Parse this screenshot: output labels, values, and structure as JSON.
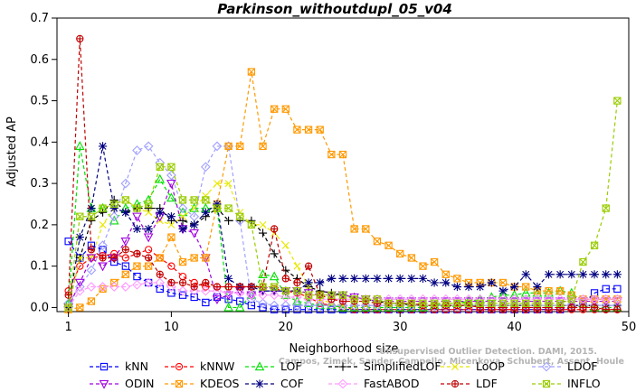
{
  "chart_data": {
    "type": "line",
    "title": "Parkinson_withoutdupl_05_v04",
    "xlabel": "Neighborhood size",
    "ylabel": "Adjusted AP",
    "xlim": [
      0,
      50
    ],
    "ylim": [
      -0.01,
      0.7
    ],
    "x_ticks": [
      "0",
      "10",
      "20",
      "30",
      "40",
      "50"
    ],
    "y_ticks": [
      "0.0",
      "0.1",
      "0.2",
      "0.3",
      "0.4",
      "0.5",
      "0.6",
      "0.7"
    ],
    "grid": false,
    "legend_position": "bottom",
    "x": [
      1,
      2,
      3,
      4,
      5,
      6,
      7,
      8,
      9,
      10,
      11,
      12,
      13,
      14,
      15,
      16,
      17,
      18,
      19,
      20,
      21,
      22,
      23,
      24,
      25,
      26,
      27,
      28,
      29,
      30,
      31,
      32,
      33,
      34,
      35,
      36,
      37,
      38,
      39,
      40,
      41,
      42,
      43,
      44,
      45,
      46,
      47,
      48,
      49
    ],
    "series": [
      {
        "name": "kNN",
        "color": "#0000ff",
        "marker": "square",
        "values": [
          0.16,
          0.12,
          0.15,
          0.14,
          0.11,
          0.1,
          0.075,
          0.06,
          0.045,
          0.035,
          0.03,
          0.025,
          0.012,
          0.025,
          0.02,
          0.015,
          0.005,
          0.0,
          -0.005,
          -0.005,
          -0.005,
          -0.005,
          -0.005,
          -0.005,
          -0.005,
          -0.005,
          -0.005,
          -0.005,
          -0.005,
          -0.005,
          -0.005,
          -0.005,
          -0.005,
          -0.005,
          -0.005,
          -0.005,
          -0.005,
          -0.005,
          -0.005,
          -0.005,
          -0.005,
          -0.005,
          -0.005,
          -0.005,
          0.0,
          0.01,
          0.035,
          0.045,
          0.045
        ]
      },
      {
        "name": "kNNW",
        "color": "#ff0000",
        "marker": "circle",
        "values": [
          0.04,
          0.1,
          0.12,
          0.125,
          0.13,
          0.12,
          0.13,
          0.14,
          0.12,
          0.1,
          0.075,
          0.06,
          0.05,
          0.05,
          0.05,
          0.05,
          0.05,
          0.05,
          0.045,
          0.04,
          0.035,
          0.025,
          0.01,
          0.005,
          0.0,
          -0.005,
          -0.005,
          -0.005,
          -0.005,
          -0.005,
          -0.005,
          -0.005,
          -0.005,
          -0.005,
          -0.005,
          -0.005,
          -0.005,
          -0.005,
          -0.005,
          -0.005,
          -0.005,
          -0.005,
          -0.005,
          -0.005,
          -0.005,
          -0.005,
          -0.005,
          -0.005,
          -0.005
        ]
      },
      {
        "name": "LOF",
        "color": "#00e000",
        "marker": "triangle-up",
        "values": [
          0.01,
          0.39,
          0.24,
          0.24,
          0.21,
          0.24,
          0.25,
          0.26,
          0.31,
          0.265,
          0.23,
          0.24,
          0.24,
          0.24,
          0.0,
          0.0,
          0.03,
          0.08,
          0.075,
          0.03,
          0.015,
          0.01,
          0.005,
          0.005,
          0.0,
          0.0,
          0.0,
          0.0,
          0.0,
          0.0,
          0.0,
          0.0,
          0.005,
          0.01,
          0.01,
          0.015,
          0.02,
          0.025,
          0.03,
          0.03,
          0.035,
          0.035,
          0.035,
          0.04,
          0.035,
          0.01,
          0.0,
          0.0,
          0.0
        ]
      },
      {
        "name": "SimplifiedLOF",
        "color": "#000000",
        "marker": "plus",
        "values": [
          0.0,
          0.12,
          0.21,
          0.23,
          0.26,
          0.23,
          0.24,
          0.24,
          0.24,
          0.21,
          0.21,
          0.2,
          0.22,
          0.24,
          0.21,
          0.21,
          0.21,
          0.18,
          0.13,
          0.09,
          0.07,
          0.05,
          0.04,
          0.035,
          0.03,
          0.025,
          0.02,
          0.015,
          0.01,
          0.01,
          0.005,
          0.005,
          0.005,
          0.005,
          0.005,
          0.005,
          0.005,
          0.005,
          0.005,
          0.005,
          0.005,
          0.005,
          0.005,
          0.005,
          0.005,
          0.005,
          0.005,
          0.005,
          0.005
        ]
      },
      {
        "name": "LoOP",
        "color": "#e8e800",
        "marker": "x",
        "values": [
          0.0,
          0.12,
          0.12,
          0.2,
          0.24,
          0.26,
          0.24,
          0.23,
          0.21,
          0.2,
          0.22,
          0.24,
          0.27,
          0.3,
          0.3,
          0.23,
          0.2,
          0.2,
          0.18,
          0.15,
          0.1,
          0.05,
          0.02,
          0.01,
          0.005,
          0.005,
          0.005,
          0.005,
          0.005,
          0.005,
          0.005,
          0.005,
          0.005,
          0.005,
          0.005,
          0.005,
          0.005,
          0.005,
          0.005,
          0.005,
          0.005,
          0.005,
          0.005,
          0.005,
          0.005,
          0.005,
          0.005,
          0.005,
          0.005
        ]
      },
      {
        "name": "LDOF",
        "color": "#a0a0ff",
        "marker": "diamond",
        "values": [
          0.01,
          0.05,
          0.09,
          0.15,
          0.22,
          0.3,
          0.38,
          0.39,
          0.35,
          0.32,
          0.24,
          0.22,
          0.34,
          0.39,
          0.39,
          0.21,
          0.02,
          0.01,
          0.005,
          0.005,
          0.005,
          0.005,
          0.005,
          0.005,
          0.005,
          0.005,
          0.005,
          0.005,
          0.005,
          0.005,
          0.005,
          0.005,
          0.005,
          0.005,
          0.005,
          0.005,
          0.005,
          0.005,
          0.005,
          0.005,
          0.005,
          0.005,
          0.005,
          0.005,
          0.005,
          0.005,
          0.005,
          0.005,
          0.005
        ]
      },
      {
        "name": "ODIN",
        "color": "#a000e0",
        "marker": "triangle-down",
        "values": [
          0.0,
          0.06,
          0.12,
          0.1,
          0.12,
          0.16,
          0.22,
          0.17,
          0.22,
          0.3,
          0.19,
          0.18,
          0.12,
          0.02,
          0.03,
          0.04,
          0.03,
          0.04,
          0.04,
          0.04,
          0.04,
          0.035,
          0.03,
          0.03,
          0.03,
          0.025,
          0.02,
          0.015,
          0.015,
          0.015,
          0.015,
          0.015,
          0.015,
          0.015,
          0.015,
          0.015,
          0.015,
          0.015,
          0.015,
          0.015,
          0.015,
          0.015,
          0.015,
          0.015,
          0.015,
          0.015,
          0.015,
          0.015,
          0.015
        ]
      },
      {
        "name": "KDEOS",
        "color": "#ff9900",
        "marker": "square-x",
        "values": [
          -0.005,
          0.0,
          0.015,
          0.045,
          0.06,
          0.08,
          0.1,
          0.1,
          0.12,
          0.17,
          0.11,
          0.12,
          0.12,
          0.25,
          0.39,
          0.39,
          0.57,
          0.39,
          0.48,
          0.48,
          0.43,
          0.43,
          0.43,
          0.37,
          0.37,
          0.19,
          0.19,
          0.16,
          0.15,
          0.13,
          0.12,
          0.1,
          0.11,
          0.08,
          0.07,
          0.06,
          0.06,
          0.06,
          0.06,
          0.05,
          0.05,
          0.04,
          0.04,
          0.04,
          0.03,
          0.02,
          0.02,
          0.02,
          0.02
        ]
      },
      {
        "name": "COF",
        "color": "#000080",
        "marker": "asterisk",
        "values": [
          0.0,
          0.17,
          0.24,
          0.39,
          0.24,
          0.23,
          0.19,
          0.19,
          0.23,
          0.22,
          0.19,
          0.2,
          0.23,
          0.25,
          0.07,
          0.05,
          0.05,
          0.04,
          0.04,
          0.04,
          0.04,
          0.06,
          0.06,
          0.07,
          0.07,
          0.07,
          0.07,
          0.07,
          0.07,
          0.07,
          0.07,
          0.07,
          0.06,
          0.06,
          0.05,
          0.05,
          0.05,
          0.06,
          0.04,
          0.05,
          0.08,
          0.05,
          0.08,
          0.08,
          0.08,
          0.08,
          0.08,
          0.08,
          0.08
        ]
      },
      {
        "name": "FastABOD",
        "color": "#ff99ff",
        "marker": "diamond",
        "values": [
          0.0,
          0.04,
          0.05,
          0.05,
          0.05,
          0.05,
          0.055,
          0.06,
          0.06,
          0.05,
          0.04,
          0.04,
          0.04,
          0.04,
          0.035,
          0.035,
          0.03,
          0.03,
          0.03,
          0.025,
          0.025,
          0.02,
          0.02,
          0.02,
          0.02,
          0.02,
          0.02,
          0.02,
          0.02,
          0.02,
          0.02,
          0.02,
          0.02,
          0.02,
          0.02,
          0.02,
          0.02,
          0.02,
          0.02,
          0.02,
          0.02,
          0.02,
          0.02,
          0.02,
          0.02,
          0.02,
          0.02,
          0.02,
          0.02
        ]
      },
      {
        "name": "LDF",
        "color": "#c00000",
        "marker": "circle-plus",
        "values": [
          0.03,
          0.65,
          0.14,
          0.12,
          0.12,
          0.14,
          0.13,
          0.12,
          0.08,
          0.06,
          0.06,
          0.05,
          0.06,
          0.05,
          0.05,
          0.05,
          0.05,
          0.05,
          0.19,
          0.07,
          0.06,
          0.1,
          0.03,
          0.02,
          0.015,
          0.015,
          0.015,
          0.01,
          0.01,
          0.01,
          0.01,
          0.005,
          0.005,
          0.005,
          0.005,
          0.005,
          0.0,
          0.0,
          0.0,
          0.0,
          0.0,
          0.0,
          0.0,
          0.0,
          0.0,
          0.0,
          0.0,
          -0.005,
          -0.005
        ]
      },
      {
        "name": "INFLO",
        "color": "#99cc00",
        "marker": "square-x-circle",
        "values": [
          0.0,
          0.22,
          0.22,
          0.24,
          0.25,
          0.26,
          0.24,
          0.25,
          0.34,
          0.34,
          0.26,
          0.26,
          0.26,
          0.24,
          0.24,
          0.22,
          0.2,
          0.05,
          0.05,
          0.04,
          0.04,
          0.03,
          0.03,
          0.03,
          0.03,
          0.02,
          0.02,
          0.02,
          0.01,
          0.01,
          0.01,
          0.01,
          0.01,
          0.01,
          0.01,
          0.01,
          0.01,
          0.01,
          0.01,
          0.01,
          0.01,
          0.01,
          0.01,
          0.01,
          0.02,
          0.11,
          0.15,
          0.24,
          0.5
        ]
      }
    ],
    "legend_order": [
      "kNN",
      "kNNW",
      "LOF",
      "SimplifiedLOF",
      "LoOP",
      "LDOF",
      "ODIN",
      "KDEOS",
      "COF",
      "FastABOD",
      "LDF",
      "INFLO"
    ]
  },
  "watermark": {
    "line1": "Unsupervised Outlier Detection. DAMI, 2015.",
    "line2": "Campos, Zimek, Sander, Campello, Micenkova, Schubert, Assent, Houle"
  }
}
